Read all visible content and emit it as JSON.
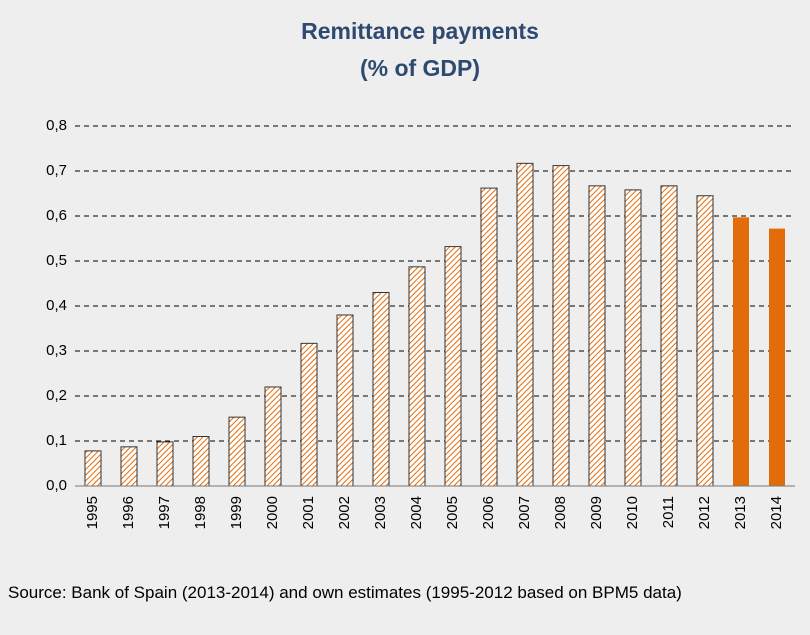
{
  "chart_data": {
    "type": "bar",
    "title": "Remittance payments",
    "subtitle": "(% of GDP)",
    "categories": [
      "1995",
      "1996",
      "1997",
      "1998",
      "1999",
      "2000",
      "2001",
      "2002",
      "2003",
      "2004",
      "2005",
      "2006",
      "2007",
      "2008",
      "2009",
      "2010",
      "2011",
      "2012",
      "2013",
      "2014"
    ],
    "values": [
      0.078,
      0.087,
      0.098,
      0.11,
      0.153,
      0.22,
      0.317,
      0.38,
      0.43,
      0.487,
      0.532,
      0.662,
      0.717,
      0.712,
      0.667,
      0.658,
      0.667,
      0.645,
      0.597,
      0.572
    ],
    "bar_styles": [
      "hatched",
      "hatched",
      "hatched",
      "hatched",
      "hatched",
      "hatched",
      "hatched",
      "hatched",
      "hatched",
      "hatched",
      "hatched",
      "hatched",
      "hatched",
      "hatched",
      "hatched",
      "hatched",
      "hatched",
      "hatched",
      "solid",
      "solid"
    ],
    "color": "#e36c0a",
    "ylim": [
      0,
      0.8
    ],
    "yticks": [
      {
        "value": 0,
        "label": "0,0"
      },
      {
        "value": 0.1,
        "label": "0,1"
      },
      {
        "value": 0.2,
        "label": "0,2"
      },
      {
        "value": 0.3,
        "label": "0,3"
      },
      {
        "value": 0.4,
        "label": "0,4"
      },
      {
        "value": 0.5,
        "label": "0,5"
      },
      {
        "value": 0.6,
        "label": "0,6"
      },
      {
        "value": 0.7,
        "label": "0,7"
      },
      {
        "value": 0.8,
        "label": "0,8"
      }
    ],
    "grid": true,
    "source": "Source: Bank of Spain (2013-2014) and own estimates (1995-2012 based on BPM5 data)"
  }
}
